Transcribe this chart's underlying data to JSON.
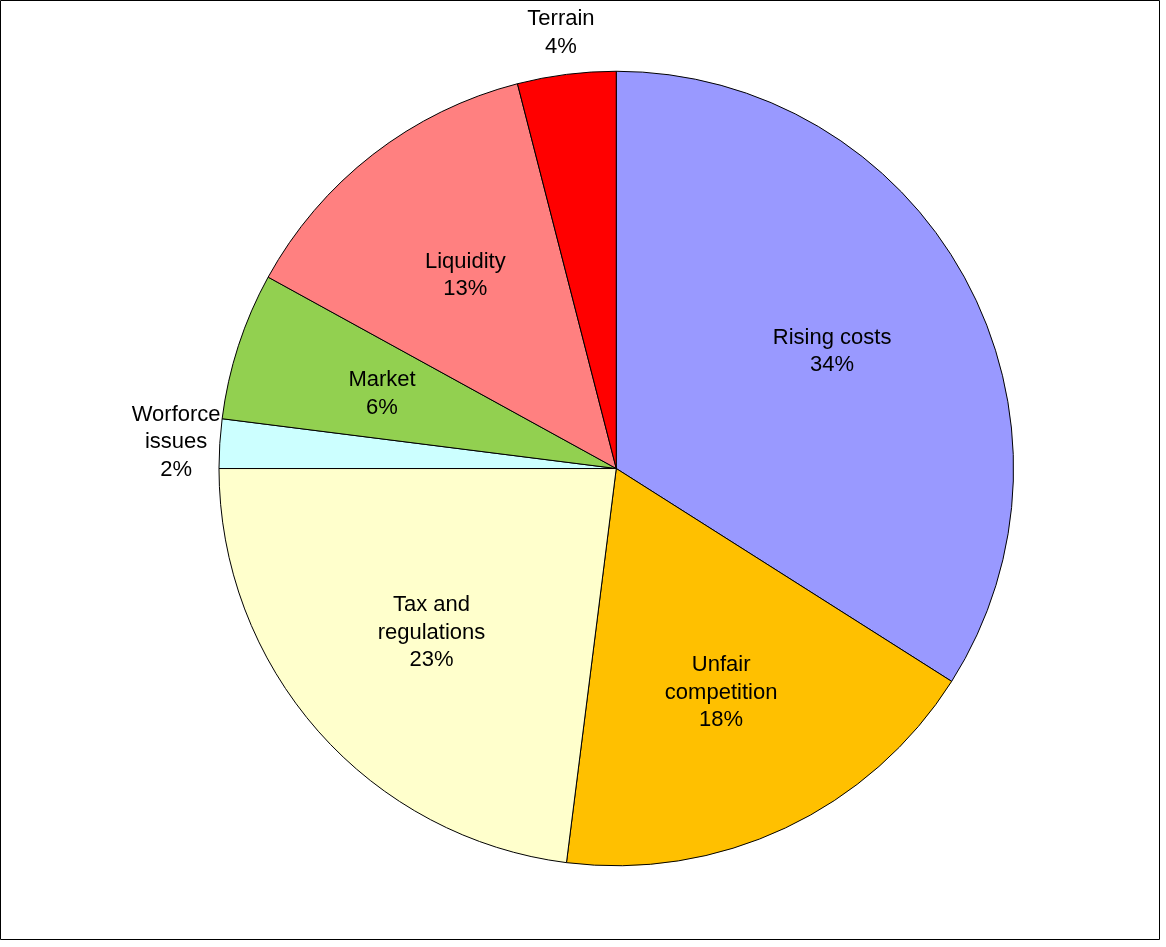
{
  "chart_data": {
    "type": "pie",
    "categories": [
      "Rising costs",
      "Unfair competition",
      "Tax and regulations",
      "Worforce issues",
      "Market",
      "Liquidity",
      "Terrain"
    ],
    "values": [
      34,
      18,
      23,
      2,
      6,
      13,
      4
    ],
    "colors": [
      "#9999ff",
      "#ffc000",
      "#ffffcc",
      "#ccffff",
      "#92d050",
      "#ff8080",
      "#ff0000"
    ],
    "value_labels": [
      "34%",
      "18%",
      "23%",
      "2%",
      "6%",
      "13%",
      "4%"
    ]
  }
}
